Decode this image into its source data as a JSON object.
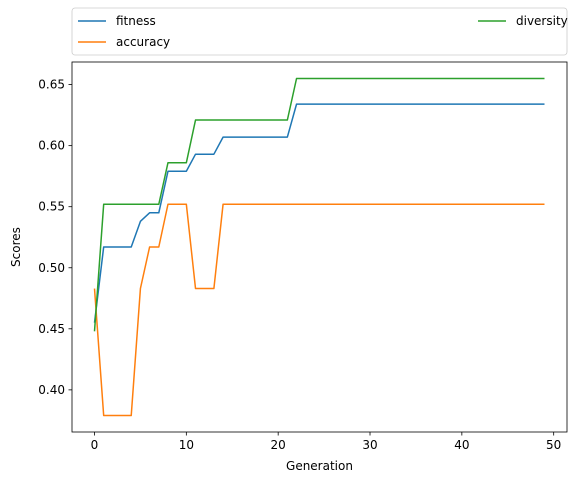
{
  "chart_data": {
    "type": "line",
    "title": "",
    "xlabel": "Generation",
    "ylabel": "Scores",
    "xlim": [
      -2.45,
      51.45
    ],
    "ylim": [
      0.3655,
      0.6685
    ],
    "xticks": [
      0,
      10,
      20,
      30,
      40,
      50
    ],
    "yticks": [
      0.4,
      0.45,
      0.5,
      0.55,
      0.6,
      0.65
    ],
    "grid": false,
    "legend_position": "top, above plot, two columns",
    "x": [
      0,
      1,
      2,
      3,
      4,
      5,
      6,
      7,
      8,
      9,
      10,
      11,
      12,
      13,
      14,
      15,
      16,
      17,
      18,
      19,
      20,
      21,
      22,
      23,
      24,
      25,
      26,
      27,
      28,
      29,
      30,
      31,
      32,
      33,
      34,
      35,
      36,
      37,
      38,
      39,
      40,
      41,
      42,
      43,
      44,
      45,
      46,
      47,
      48,
      49
    ],
    "series": [
      {
        "name": "fitness",
        "color": "#1f77b4",
        "values": [
          0.455,
          0.517,
          0.517,
          0.517,
          0.517,
          0.538,
          0.545,
          0.545,
          0.579,
          0.579,
          0.579,
          0.593,
          0.593,
          0.593,
          0.607,
          0.607,
          0.607,
          0.607,
          0.607,
          0.607,
          0.607,
          0.607,
          0.634,
          0.634,
          0.634,
          0.634,
          0.634,
          0.634,
          0.634,
          0.634,
          0.634,
          0.634,
          0.634,
          0.634,
          0.634,
          0.634,
          0.634,
          0.634,
          0.634,
          0.634,
          0.634,
          0.634,
          0.634,
          0.634,
          0.634,
          0.634,
          0.634,
          0.634,
          0.634,
          0.634
        ]
      },
      {
        "name": "accuracy",
        "color": "#ff7f0e",
        "values": [
          0.483,
          0.379,
          0.379,
          0.379,
          0.379,
          0.483,
          0.517,
          0.517,
          0.552,
          0.552,
          0.552,
          0.483,
          0.483,
          0.483,
          0.552,
          0.552,
          0.552,
          0.552,
          0.552,
          0.552,
          0.552,
          0.552,
          0.552,
          0.552,
          0.552,
          0.552,
          0.552,
          0.552,
          0.552,
          0.552,
          0.552,
          0.552,
          0.552,
          0.552,
          0.552,
          0.552,
          0.552,
          0.552,
          0.552,
          0.552,
          0.552,
          0.552,
          0.552,
          0.552,
          0.552,
          0.552,
          0.552,
          0.552,
          0.552,
          0.552
        ]
      },
      {
        "name": "diversity",
        "color": "#2ca02c",
        "values": [
          0.448,
          0.552,
          0.552,
          0.552,
          0.552,
          0.552,
          0.552,
          0.552,
          0.586,
          0.586,
          0.586,
          0.621,
          0.621,
          0.621,
          0.621,
          0.621,
          0.621,
          0.621,
          0.621,
          0.621,
          0.621,
          0.621,
          0.655,
          0.655,
          0.655,
          0.655,
          0.655,
          0.655,
          0.655,
          0.655,
          0.655,
          0.655,
          0.655,
          0.655,
          0.655,
          0.655,
          0.655,
          0.655,
          0.655,
          0.655,
          0.655,
          0.655,
          0.655,
          0.655,
          0.655,
          0.655,
          0.655,
          0.655,
          0.655,
          0.655
        ]
      }
    ]
  }
}
